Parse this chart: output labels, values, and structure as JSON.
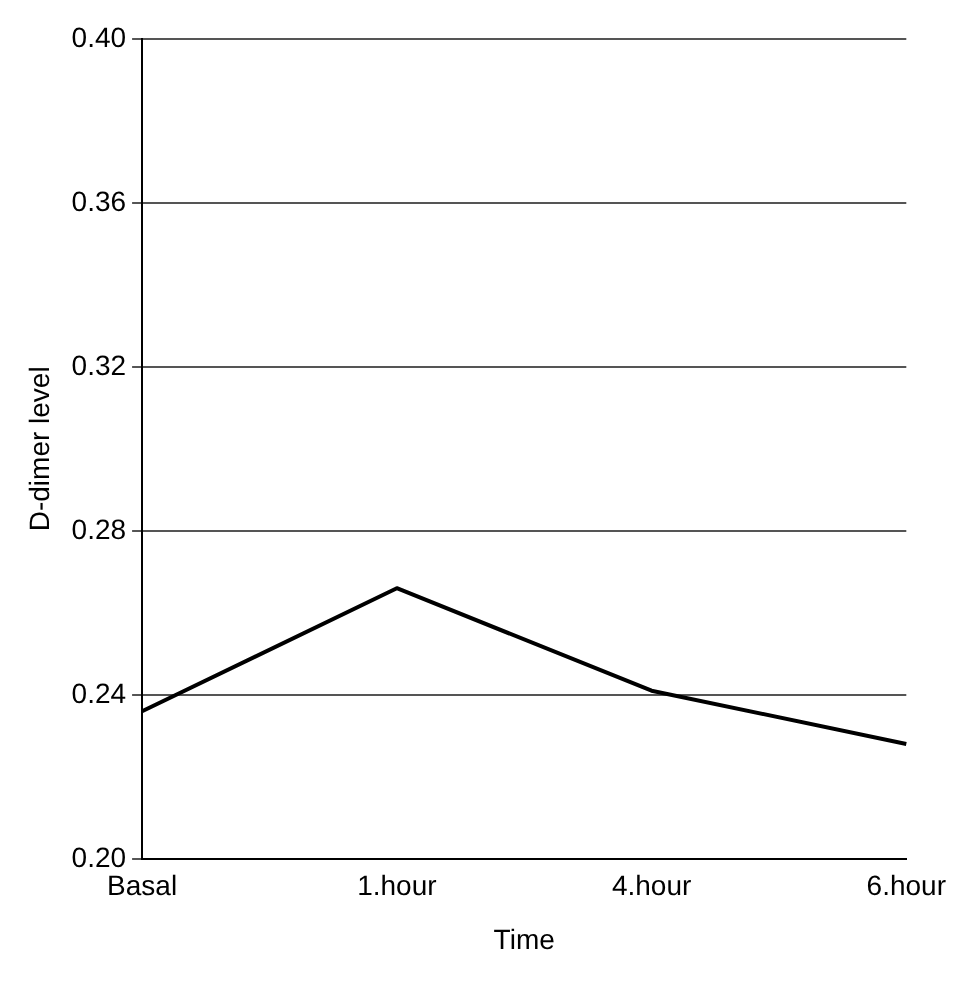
{
  "chart_data": {
    "type": "line",
    "xlabel": "Time",
    "ylabel": "D-dimer level",
    "categories": [
      "Basal",
      "1.hour",
      "4.hour",
      "6.hour"
    ],
    "series": [
      {
        "color": "#000000",
        "values": [
          0.236,
          0.266,
          0.241,
          0.228
        ]
      }
    ],
    "ylim": [
      0.2,
      0.4
    ],
    "yticks": [
      {
        "value": 0.2,
        "label": "0.20"
      },
      {
        "value": 0.24,
        "label": "0.24"
      },
      {
        "value": 0.28,
        "label": "0.28"
      },
      {
        "value": 0.32,
        "label": "0.32"
      },
      {
        "value": 0.36,
        "label": "0.36"
      },
      {
        "value": 0.4,
        "label": "0.40"
      }
    ],
    "grid": "y",
    "legend": false,
    "marker": "none",
    "line_style": "solid"
  }
}
